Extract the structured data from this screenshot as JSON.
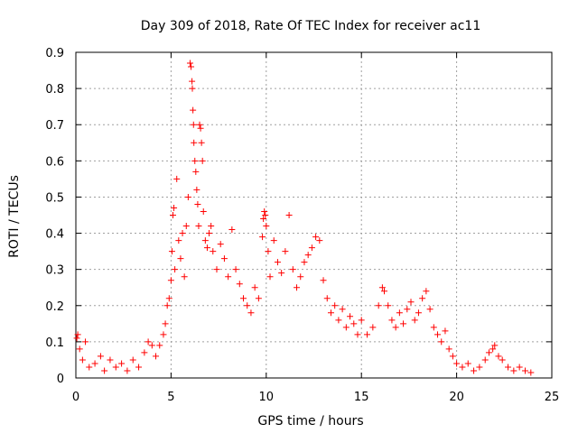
{
  "chart_data": {
    "type": "scatter",
    "title": "Day 309 of 2018, Rate Of TEC Index for receiver ac11",
    "xlabel": "GPS time / hours",
    "ylabel": "ROTI / TECUs",
    "xlim": [
      0,
      25
    ],
    "ylim": [
      0,
      0.9
    ],
    "x_ticks": [
      0,
      5,
      10,
      15,
      20,
      25
    ],
    "x_tick_labels": [
      "0",
      "5",
      "10",
      "15",
      "20",
      "25"
    ],
    "y_ticks": [
      0,
      0.1,
      0.2,
      0.3,
      0.4,
      0.5,
      0.6,
      0.7,
      0.8,
      0.9
    ],
    "y_tick_labels": [
      "0",
      "0.1",
      "0.2",
      "0.3",
      "0.4",
      "0.5",
      "0.6",
      "0.7",
      "0.8",
      "0.9"
    ],
    "grid": true,
    "marker": "+",
    "series": [
      {
        "name": "ROTI",
        "color": "#ff0000",
        "points": [
          [
            0.05,
            0.11
          ],
          [
            0.1,
            0.12
          ],
          [
            0.2,
            0.08
          ],
          [
            0.35,
            0.05
          ],
          [
            0.5,
            0.1
          ],
          [
            0.7,
            0.03
          ],
          [
            1.0,
            0.04
          ],
          [
            1.3,
            0.06
          ],
          [
            1.5,
            0.02
          ],
          [
            1.8,
            0.05
          ],
          [
            2.1,
            0.03
          ],
          [
            2.4,
            0.04
          ],
          [
            2.7,
            0.02
          ],
          [
            3.0,
            0.05
          ],
          [
            3.3,
            0.03
          ],
          [
            3.6,
            0.07
          ],
          [
            3.8,
            0.1
          ],
          [
            4.0,
            0.09
          ],
          [
            4.2,
            0.06
          ],
          [
            4.4,
            0.09
          ],
          [
            4.6,
            0.12
          ],
          [
            4.7,
            0.15
          ],
          [
            4.8,
            0.2
          ],
          [
            4.9,
            0.22
          ],
          [
            5.0,
            0.27
          ],
          [
            5.05,
            0.35
          ],
          [
            5.1,
            0.45
          ],
          [
            5.15,
            0.47
          ],
          [
            5.2,
            0.3
          ],
          [
            5.3,
            0.55
          ],
          [
            5.4,
            0.38
          ],
          [
            5.5,
            0.33
          ],
          [
            5.6,
            0.4
          ],
          [
            5.7,
            0.28
          ],
          [
            5.8,
            0.42
          ],
          [
            5.9,
            0.5
          ],
          [
            6.0,
            0.87
          ],
          [
            6.05,
            0.86
          ],
          [
            6.1,
            0.82
          ],
          [
            6.12,
            0.8
          ],
          [
            6.15,
            0.74
          ],
          [
            6.18,
            0.7
          ],
          [
            6.2,
            0.65
          ],
          [
            6.25,
            0.6
          ],
          [
            6.3,
            0.57
          ],
          [
            6.35,
            0.52
          ],
          [
            6.4,
            0.48
          ],
          [
            6.45,
            0.42
          ],
          [
            6.5,
            0.7
          ],
          [
            6.55,
            0.69
          ],
          [
            6.6,
            0.65
          ],
          [
            6.65,
            0.6
          ],
          [
            6.7,
            0.46
          ],
          [
            6.8,
            0.38
          ],
          [
            6.9,
            0.36
          ],
          [
            7.0,
            0.4
          ],
          [
            7.1,
            0.42
          ],
          [
            7.2,
            0.35
          ],
          [
            7.4,
            0.3
          ],
          [
            7.6,
            0.37
          ],
          [
            7.8,
            0.33
          ],
          [
            8.0,
            0.28
          ],
          [
            8.2,
            0.41
          ],
          [
            8.4,
            0.3
          ],
          [
            8.6,
            0.26
          ],
          [
            8.8,
            0.22
          ],
          [
            9.0,
            0.2
          ],
          [
            9.2,
            0.18
          ],
          [
            9.4,
            0.25
          ],
          [
            9.6,
            0.22
          ],
          [
            9.8,
            0.39
          ],
          [
            9.85,
            0.44
          ],
          [
            9.9,
            0.46
          ],
          [
            9.95,
            0.45
          ],
          [
            10.0,
            0.42
          ],
          [
            10.1,
            0.35
          ],
          [
            10.2,
            0.28
          ],
          [
            10.4,
            0.38
          ],
          [
            10.6,
            0.32
          ],
          [
            10.8,
            0.29
          ],
          [
            11.0,
            0.35
          ],
          [
            11.2,
            0.45
          ],
          [
            11.4,
            0.3
          ],
          [
            11.6,
            0.25
          ],
          [
            11.8,
            0.28
          ],
          [
            12.0,
            0.32
          ],
          [
            12.2,
            0.34
          ],
          [
            12.4,
            0.36
          ],
          [
            12.6,
            0.39
          ],
          [
            12.8,
            0.38
          ],
          [
            13.0,
            0.27
          ],
          [
            13.2,
            0.22
          ],
          [
            13.4,
            0.18
          ],
          [
            13.6,
            0.2
          ],
          [
            13.8,
            0.16
          ],
          [
            14.0,
            0.19
          ],
          [
            14.2,
            0.14
          ],
          [
            14.4,
            0.17
          ],
          [
            14.6,
            0.15
          ],
          [
            14.8,
            0.12
          ],
          [
            15.0,
            0.16
          ],
          [
            15.3,
            0.12
          ],
          [
            15.6,
            0.14
          ],
          [
            15.9,
            0.2
          ],
          [
            16.1,
            0.25
          ],
          [
            16.2,
            0.24
          ],
          [
            16.4,
            0.2
          ],
          [
            16.6,
            0.16
          ],
          [
            16.8,
            0.14
          ],
          [
            17.0,
            0.18
          ],
          [
            17.2,
            0.15
          ],
          [
            17.4,
            0.19
          ],
          [
            17.6,
            0.21
          ],
          [
            17.8,
            0.16
          ],
          [
            18.0,
            0.18
          ],
          [
            18.2,
            0.22
          ],
          [
            18.4,
            0.24
          ],
          [
            18.6,
            0.19
          ],
          [
            18.8,
            0.14
          ],
          [
            19.0,
            0.12
          ],
          [
            19.2,
            0.1
          ],
          [
            19.4,
            0.13
          ],
          [
            19.6,
            0.08
          ],
          [
            19.8,
            0.06
          ],
          [
            20.0,
            0.04
          ],
          [
            20.3,
            0.03
          ],
          [
            20.6,
            0.04
          ],
          [
            20.9,
            0.02
          ],
          [
            21.2,
            0.03
          ],
          [
            21.5,
            0.05
          ],
          [
            21.7,
            0.07
          ],
          [
            21.9,
            0.08
          ],
          [
            22.0,
            0.09
          ],
          [
            22.2,
            0.06
          ],
          [
            22.4,
            0.05
          ],
          [
            22.7,
            0.03
          ],
          [
            23.0,
            0.02
          ],
          [
            23.3,
            0.03
          ],
          [
            23.6,
            0.02
          ],
          [
            23.9,
            0.015
          ]
        ]
      }
    ]
  }
}
